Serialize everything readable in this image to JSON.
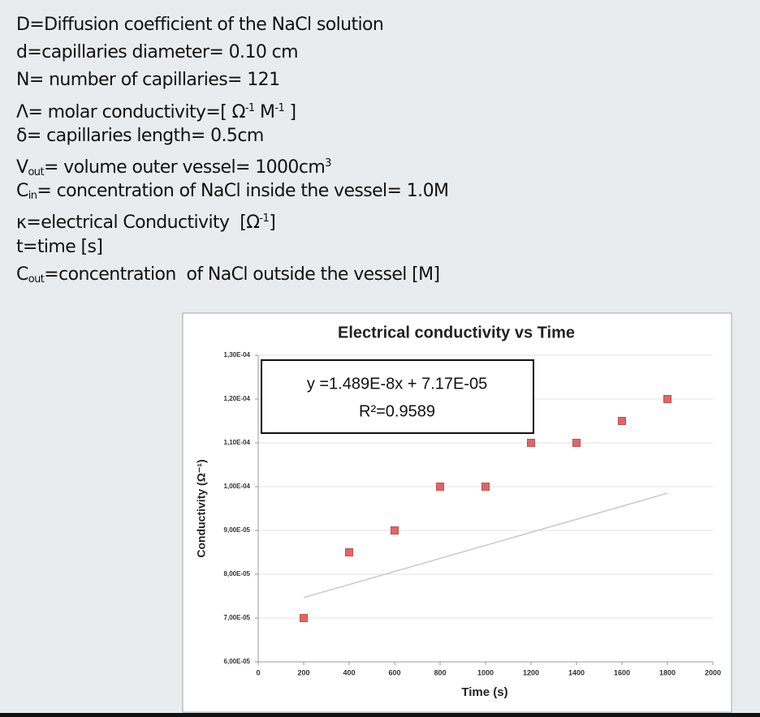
{
  "definitions": [
    [
      {
        "text": "D=Diffusion coefficient of the NaCl solution"
      }
    ],
    [
      {
        "text": "d=capillaries diameter= 0.10 cm"
      }
    ],
    [
      {
        "text": "N= number of capillaries= 121"
      }
    ],
    [
      {
        "text": "Λ= molar conductivity=[ Ω"
      },
      {
        "sup": "-1"
      },
      {
        "text": " M"
      },
      {
        "sup": "-1"
      },
      {
        "text": " ]"
      }
    ],
    [
      {
        "text": "δ= capillaries length= 0.5cm"
      }
    ],
    [
      {
        "text": "V"
      },
      {
        "sub": "out"
      },
      {
        "text": "= volume outer vessel= 1000cm"
      },
      {
        "sup": "3"
      }
    ],
    [
      {
        "text": "C"
      },
      {
        "sub": "in"
      },
      {
        "text": "= concentration of NaCl inside the vessel= 1.0M"
      }
    ],
    [
      {
        "text": "κ=electrical Conductivity  [Ω"
      },
      {
        "sup": "-1"
      },
      {
        "text": "]"
      }
    ],
    [
      {
        "text": "t=time [s]"
      }
    ],
    [
      {
        "text": "C"
      },
      {
        "sub": "out"
      },
      {
        "text": "=concentration  of NaCl outside the vessel [M]"
      }
    ]
  ],
  "chart_data": {
    "type": "scatter",
    "title": "Electrical conductivity vs Time",
    "x_label": "Time (s)",
    "y_label": "Conductivity (Ω⁻¹)",
    "series": [
      {
        "name": "Conductivity",
        "color": "#e06666",
        "x": [
          200,
          400,
          600,
          800,
          1000,
          1200,
          1400,
          1600,
          1800
        ],
        "values": [
          7e-05,
          8.5e-05,
          9e-05,
          0.0001,
          0.0001,
          0.00011,
          0.00011,
          0.000115,
          0.00012
        ]
      }
    ],
    "xlim": [
      0,
      2000
    ],
    "xticks": [
      0,
      200,
      400,
      600,
      800,
      1000,
      1200,
      1400,
      1600,
      1800,
      2000
    ],
    "ylim": [
      6e-05,
      0.00013
    ],
    "yticks": [
      {
        "value": 6e-05,
        "label": "6,00E-05"
      },
      {
        "value": 7e-05,
        "label": "7,00E-05"
      },
      {
        "value": 8e-05,
        "label": "8,00E-05"
      },
      {
        "value": 9e-05,
        "label": "9,00E-05"
      },
      {
        "value": 0.0001,
        "label": "1,00E-04"
      },
      {
        "value": 0.00011,
        "label": "1,10E-04"
      },
      {
        "value": 0.00012,
        "label": "1,20E-04"
      },
      {
        "value": 0.00013,
        "label": "1,30E-04"
      }
    ],
    "grid": true,
    "trendline": {
      "slope": 1.489e-08,
      "intercept": 7.17e-05,
      "color": "#c8c8c8",
      "label": "y =1.489E-8x + 7.17E-05",
      "r2_label": "R²=0.9589"
    }
  }
}
